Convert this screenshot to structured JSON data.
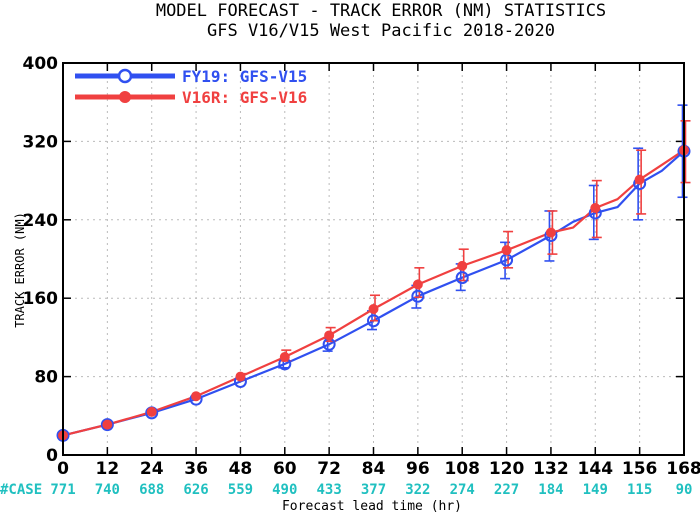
{
  "chart_data": {
    "type": "line",
    "title": "MODEL FORECAST - TRACK ERROR (NM) STATISTICS",
    "subtitle": "GFS V16/V15 West Pacific 2018-2020",
    "xlabel": "Forecast lead time (hr)",
    "ylabel": "TRACK ERROR (NM)",
    "xlim": [
      0,
      168
    ],
    "ylim": [
      0,
      400
    ],
    "x_ticks": [
      0,
      12,
      24,
      36,
      48,
      60,
      72,
      84,
      96,
      108,
      120,
      132,
      144,
      156,
      168
    ],
    "y_ticks": [
      0,
      80,
      160,
      240,
      320,
      400
    ],
    "grid": true,
    "legend_position": "top-left",
    "case_label": "#CASE",
    "case_counts": [
      771,
      740,
      688,
      626,
      559,
      490,
      433,
      377,
      322,
      274,
      227,
      184,
      149,
      115,
      90
    ],
    "x": [
      0,
      12,
      24,
      36,
      48,
      60,
      72,
      84,
      96,
      108,
      120,
      132,
      138,
      144,
      150,
      156,
      162,
      168
    ],
    "series": [
      {
        "name": "FY19: GFS-V15",
        "color": "#3050f0",
        "values": [
          20,
          31,
          43,
          57,
          75,
          93,
          113,
          137,
          162,
          181,
          199,
          224,
          238,
          247,
          253,
          277,
          290,
          310
        ],
        "errorbars": [
          {
            "x": 0,
            "low": 20,
            "high": 20
          },
          {
            "x": 12,
            "low": 31,
            "high": 31
          },
          {
            "x": 24,
            "low": 43,
            "high": 43
          },
          {
            "x": 36,
            "low": 57,
            "high": 57
          },
          {
            "x": 48,
            "low": 75,
            "high": 75
          },
          {
            "x": 60,
            "low": 89,
            "high": 97
          },
          {
            "x": 72,
            "low": 106,
            "high": 119
          },
          {
            "x": 84,
            "low": 128,
            "high": 147
          },
          {
            "x": 96,
            "low": 150,
            "high": 173
          },
          {
            "x": 108,
            "low": 168,
            "high": 195
          },
          {
            "x": 120,
            "low": 180,
            "high": 217
          },
          {
            "x": 132,
            "low": 198,
            "high": 249
          },
          {
            "x": 144,
            "low": 220,
            "high": 275
          },
          {
            "x": 156,
            "low": 240,
            "high": 313
          },
          {
            "x": 168,
            "low": 263,
            "high": 357
          }
        ]
      },
      {
        "name": "V16R: GFS-V16",
        "color": "#f04040",
        "values": [
          20,
          31,
          44,
          60,
          80,
          100,
          122,
          149,
          174,
          193,
          209,
          227,
          232,
          252,
          261,
          281,
          296,
          311
        ],
        "errorbars": [
          {
            "x": 0,
            "low": 20,
            "high": 20
          },
          {
            "x": 12,
            "low": 31,
            "high": 31
          },
          {
            "x": 24,
            "low": 44,
            "high": 44
          },
          {
            "x": 36,
            "low": 60,
            "high": 60
          },
          {
            "x": 48,
            "low": 77,
            "high": 83
          },
          {
            "x": 60,
            "low": 96,
            "high": 107
          },
          {
            "x": 72,
            "low": 116,
            "high": 130
          },
          {
            "x": 84,
            "low": 137,
            "high": 163
          },
          {
            "x": 96,
            "low": 161,
            "high": 191
          },
          {
            "x": 108,
            "low": 178,
            "high": 210
          },
          {
            "x": 120,
            "low": 191,
            "high": 228
          },
          {
            "x": 132,
            "low": 205,
            "high": 249
          },
          {
            "x": 144,
            "low": 222,
            "high": 280
          },
          {
            "x": 156,
            "low": 246,
            "high": 311
          },
          {
            "x": 168,
            "low": 278,
            "high": 341
          }
        ]
      }
    ]
  }
}
